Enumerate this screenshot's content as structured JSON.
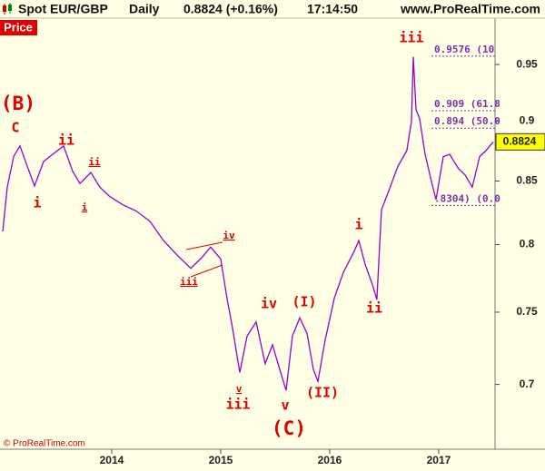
{
  "chart_data": {
    "type": "line",
    "header": {
      "symbol": "Spot EUR/GBP",
      "period": "Daily",
      "quote": "0.8824 (+0.16%)",
      "time": "17:14:50",
      "site": "www.ProRealTime.com"
    },
    "panel_label": "Price",
    "copyright": "© ProRealTime.com",
    "log_scale": true,
    "grid": false,
    "series": [
      {
        "name": "EUR/GBP",
        "color": "#9900cc",
        "x": [
          2013.0,
          2013.042,
          2013.1,
          2013.158,
          2013.225,
          2013.292,
          2013.375,
          2013.458,
          2013.558,
          2013.642,
          2013.708,
          2013.808,
          2013.892,
          2013.975,
          2014.1,
          2014.225,
          2014.35,
          2014.475,
          2014.6,
          2014.725,
          2014.825,
          2014.908,
          2015.0,
          2015.058,
          2015.108,
          2015.175,
          2015.242,
          2015.325,
          2015.408,
          2015.475,
          2015.542,
          2015.6,
          2015.658,
          2015.725,
          2015.792,
          2015.85,
          2015.892,
          2015.958,
          2016.042,
          2016.125,
          2016.225,
          2016.267,
          2016.325,
          2016.392,
          2016.433,
          2016.475,
          2016.542,
          2016.625,
          2016.708,
          2016.75,
          2016.767,
          2016.792,
          2016.825,
          2016.875,
          2016.933,
          2016.975,
          2017.042,
          2017.1,
          2017.183,
          2017.242,
          2017.308,
          2017.375,
          2017.433,
          2017.5
        ],
        "values": [
          0.81,
          0.845,
          0.87,
          0.879,
          0.862,
          0.846,
          0.866,
          0.872,
          0.879,
          0.858,
          0.848,
          0.857,
          0.845,
          0.838,
          0.831,
          0.826,
          0.818,
          0.803,
          0.792,
          0.782,
          0.79,
          0.798,
          0.789,
          0.76,
          0.739,
          0.708,
          0.733,
          0.743,
          0.714,
          0.727,
          0.71,
          0.696,
          0.733,
          0.746,
          0.735,
          0.71,
          0.702,
          0.73,
          0.76,
          0.779,
          0.795,
          0.803,
          0.785,
          0.77,
          0.759,
          0.827,
          0.842,
          0.862,
          0.875,
          0.9,
          0.957,
          0.91,
          0.902,
          0.872,
          0.85,
          0.835,
          0.87,
          0.872,
          0.86,
          0.855,
          0.845,
          0.87,
          0.875,
          0.8824
        ]
      }
    ],
    "last_value": 0.8824,
    "xlim": [
      2012.975,
      2017.517
    ],
    "xticks": [
      2014,
      2015,
      2016,
      2017
    ],
    "ylim": [
      0.658,
      0.993
    ],
    "yticks": [
      0.7,
      0.75,
      0.8,
      0.85,
      0.9,
      0.95
    ],
    "levels": [
      {
        "value": 0.9576,
        "label": "0.9576 (10"
      },
      {
        "value": 0.909,
        "label": "0.909 (61.8"
      },
      {
        "value": 0.894,
        "label": "0.894 (50.0"
      },
      {
        "value": 0.8304,
        "label": ".8304) (0.0"
      }
    ],
    "annotations": [
      "(B)",
      "C",
      "i",
      "ii",
      "ii",
      "i",
      "iv",
      "iii",
      "iv",
      "v",
      "iii",
      "v",
      "(C)",
      "(I)",
      "(II)",
      "i",
      "ii",
      "iii"
    ]
  }
}
